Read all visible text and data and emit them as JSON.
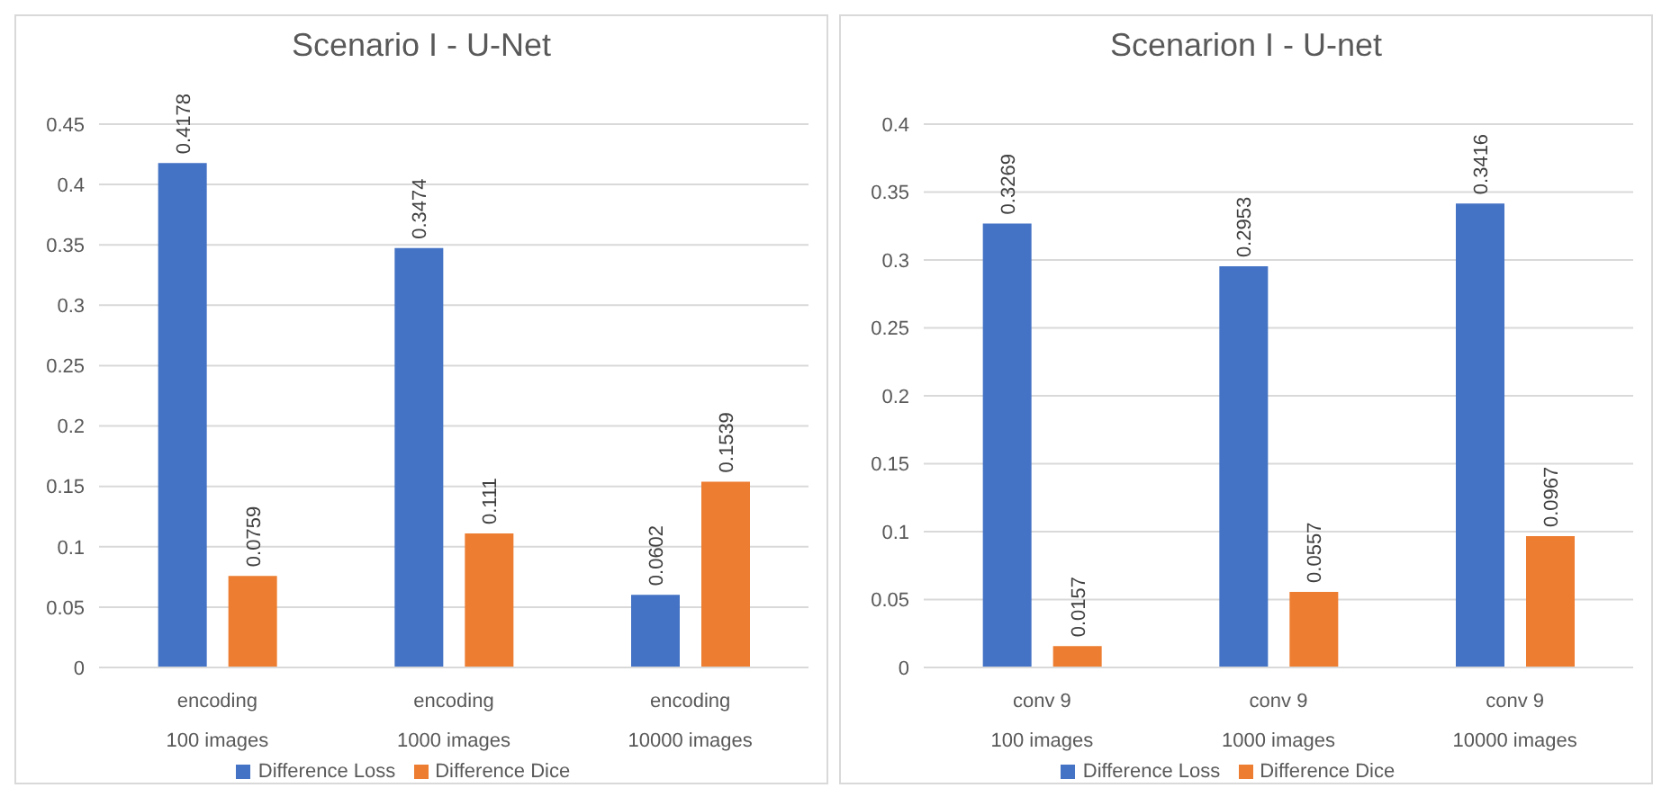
{
  "chart_data": [
    {
      "type": "bar",
      "title": "Scenario I - U-Net",
      "categories": [
        "encoding\n100 images",
        "encoding\n1000 images",
        "encoding\n10000 images"
      ],
      "series": [
        {
          "name": "Difference Loss",
          "color": "#4472c4",
          "values": [
            0.4178,
            0.3474,
            0.0602
          ]
        },
        {
          "name": "Difference Dice",
          "color": "#ed7d31",
          "values": [
            0.0759,
            0.111,
            0.1539
          ]
        }
      ],
      "ylim": [
        0,
        0.45
      ],
      "yticks": [
        0,
        0.05,
        0.1,
        0.15,
        0.2,
        0.25,
        0.3,
        0.35,
        0.4,
        0.45
      ],
      "grid": "y",
      "legend": "bottom",
      "data_labels": true
    },
    {
      "type": "bar",
      "title": "Scenarion I - U-net",
      "categories": [
        "conv 9\n100 images",
        "conv 9\n1000 images",
        "conv 9\n10000 images"
      ],
      "series": [
        {
          "name": "Difference Loss",
          "color": "#4472c4",
          "values": [
            0.3269,
            0.2953,
            0.3416
          ]
        },
        {
          "name": "Difference Dice",
          "color": "#ed7d31",
          "values": [
            0.0157,
            0.0557,
            0.0967
          ]
        }
      ],
      "ylim": [
        0,
        0.4
      ],
      "yticks": [
        0,
        0.05,
        0.1,
        0.15,
        0.2,
        0.25,
        0.3,
        0.35,
        0.4
      ],
      "grid": "y",
      "legend": "bottom",
      "data_labels": true
    }
  ]
}
